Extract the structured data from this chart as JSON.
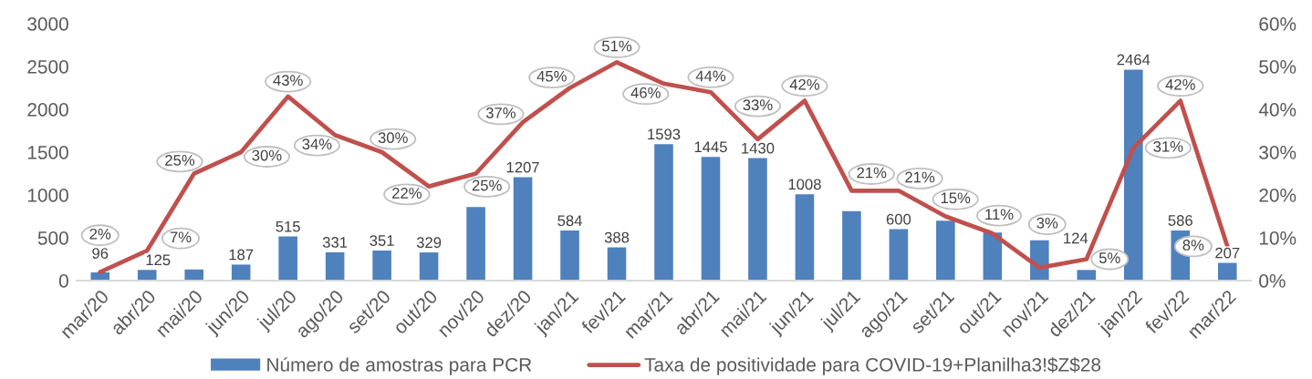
{
  "chart_data": {
    "type": "bar",
    "categories": [
      "mar/20",
      "abr/20",
      "mai/20",
      "jun/20",
      "jul/20",
      "ago/20",
      "set/20",
      "out/20",
      "nov/20",
      "dez/20",
      "jan/21",
      "fev/21",
      "mar/21",
      "abr/21",
      "mai/21",
      "jun/21",
      "jul/21",
      "ago/21",
      "set/21",
      "out/21",
      "nov/21",
      "dez/21",
      "jan/22",
      "fev/22",
      "mar/22"
    ],
    "series": [
      {
        "name": "Número de amostras para PCR",
        "color": "#4f81bd",
        "values": [
          96,
          125,
          130,
          187,
          515,
          331,
          351,
          329,
          860,
          1207,
          584,
          388,
          1593,
          1445,
          1430,
          1008,
          810,
          600,
          700,
          560,
          470,
          124,
          2464,
          586,
          207
        ],
        "value_labels": [
          "96",
          "125",
          null,
          "187",
          "515",
          "331",
          "351",
          "329",
          null,
          "1207",
          "584",
          "388",
          "1593",
          "1445",
          "1430",
          "1008",
          null,
          "600",
          null,
          null,
          null,
          "124",
          "2464",
          "586",
          "207"
        ]
      },
      {
        "name": "Taxa de positividade para COVID-19+Planilha3!$Z$28",
        "type": "line",
        "axis": "y2",
        "color": "#c0504d",
        "values": [
          2,
          7,
          25,
          30,
          43,
          34,
          30,
          22,
          25,
          37,
          45,
          51,
          46,
          44,
          33,
          42,
          21,
          21,
          15,
          11,
          3,
          5,
          31,
          42,
          8
        ],
        "value_labels": [
          "2%",
          "7%",
          "25%",
          "30%",
          "43%",
          "34%",
          "30%",
          "22%",
          "25%",
          "37%",
          "45%",
          "51%",
          "46%",
          "44%",
          "33%",
          "42%",
          "21%",
          "21%",
          "15%",
          "11%",
          "3%",
          "5%",
          "31%",
          "42%",
          "8%"
        ]
      }
    ],
    "ylim": [
      0,
      3000
    ],
    "yticks": [
      0,
      500,
      1000,
      1500,
      2000,
      2500,
      3000
    ],
    "y2lim": [
      0,
      60
    ],
    "y2ticks": [
      {
        "value": 0,
        "label": "0%"
      },
      {
        "value": 10,
        "label": "10%"
      },
      {
        "value": 20,
        "label": "20%"
      },
      {
        "value": 30,
        "label": "30%"
      },
      {
        "value": 40,
        "label": "40%"
      },
      {
        "value": 50,
        "label": "50%"
      },
      {
        "value": 60,
        "label": "60%"
      }
    ],
    "legend": "bottom"
  }
}
